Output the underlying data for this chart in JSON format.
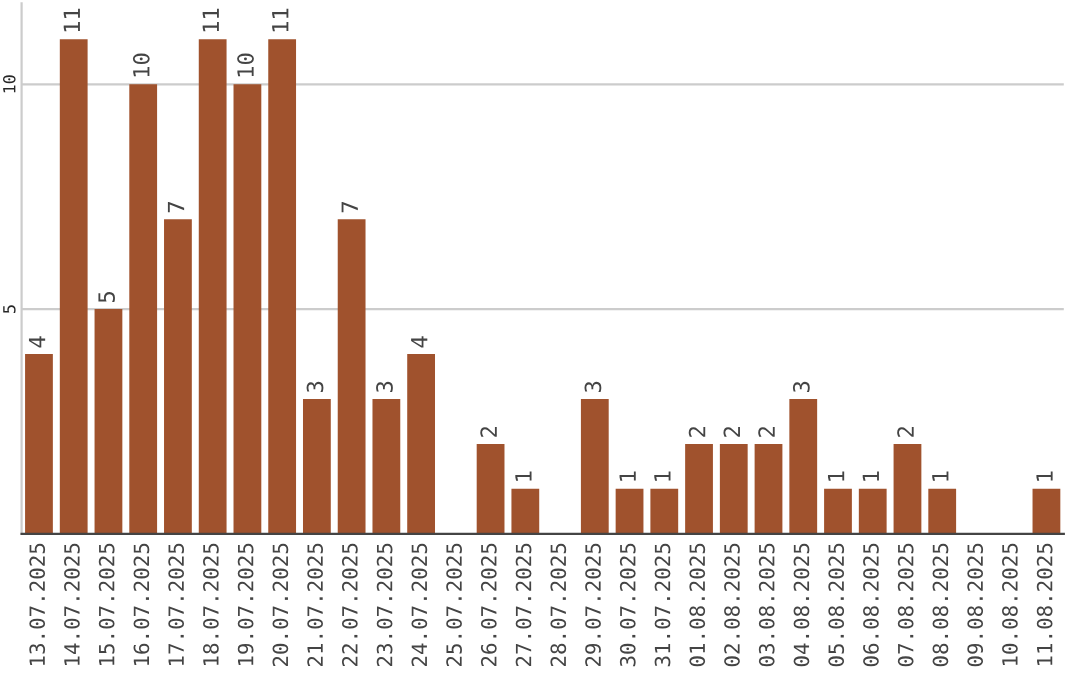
{
  "chart_data": {
    "type": "bar",
    "categories": [
      "13.07.2025",
      "14.07.2025",
      "15.07.2025",
      "16.07.2025",
      "17.07.2025",
      "18.07.2025",
      "19.07.2025",
      "20.07.2025",
      "21.07.2025",
      "22.07.2025",
      "23.07.2025",
      "24.07.2025",
      "25.07.2025",
      "26.07.2025",
      "27.07.2025",
      "28.07.2025",
      "29.07.2025",
      "30.07.2025",
      "31.07.2025",
      "01.08.2025",
      "02.08.2025",
      "03.08.2025",
      "04.08.2025",
      "05.08.2025",
      "06.08.2025",
      "07.08.2025",
      "08.08.2025",
      "09.08.2025",
      "10.08.2025",
      "11.08.2025"
    ],
    "values": [
      4,
      11,
      5,
      10,
      7,
      11,
      10,
      11,
      3,
      7,
      3,
      4,
      0,
      2,
      1,
      0,
      3,
      1,
      1,
      2,
      2,
      2,
      3,
      1,
      1,
      2,
      1,
      0,
      0,
      1
    ],
    "value_labels": [
      "4",
      "11",
      "5",
      "10",
      "7",
      "11",
      "10",
      "11",
      "3",
      "7",
      "3",
      "4",
      null,
      "2",
      "1",
      null,
      "3",
      "1",
      "1",
      "2",
      "2",
      "2",
      "3",
      "1",
      "1",
      "2",
      "1",
      null,
      null,
      "1"
    ],
    "color": "#a0522d",
    "ylim": [
      0,
      11.8
    ],
    "yticks": [
      5,
      10
    ],
    "grid": "y"
  }
}
